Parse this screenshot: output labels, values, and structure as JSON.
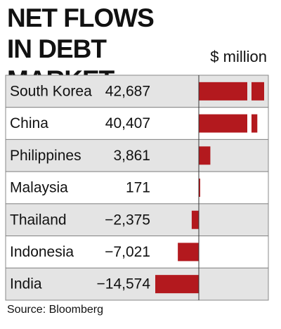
{
  "chart_data": {
    "type": "bar",
    "orientation": "horizontal",
    "title": "NET FLOWS IN DEBT MARKET",
    "unit": "$ million",
    "categories": [
      "South Korea",
      "China",
      "Philippines",
      "Malaysia",
      "Thailand",
      "Indonesia",
      "India"
    ],
    "values": [
      42687,
      40407,
      3861,
      171,
      -2375,
      -7021,
      -14574
    ],
    "value_labels": [
      "42,687",
      "40,407",
      "3,861",
      "171",
      "−2,375",
      "−7,021",
      "−14,574"
    ],
    "color": "#b3191e",
    "source": "Source: Bloomberg"
  }
}
